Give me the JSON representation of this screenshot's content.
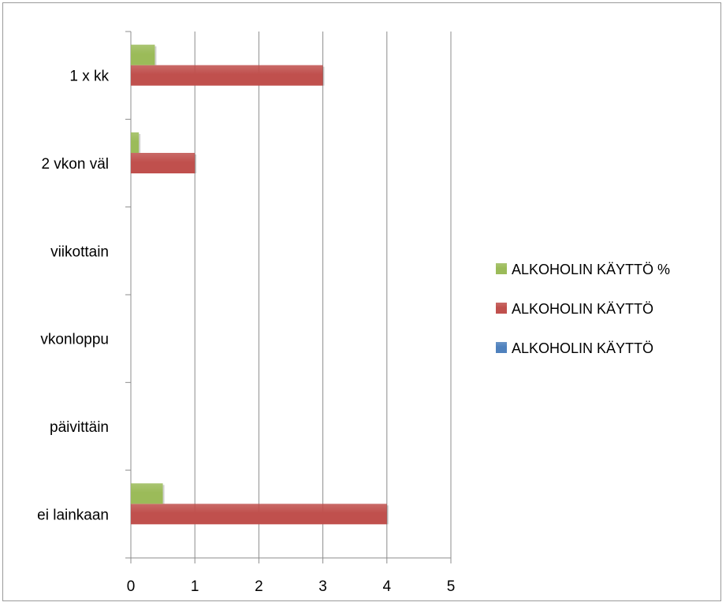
{
  "chart_data": {
    "type": "bar",
    "orientation": "horizontal",
    "categories": [
      "1 x kk",
      "2 vkon väl",
      "viikottain",
      "vkonloppu",
      "päivittäin",
      "ei lainkaan"
    ],
    "series": [
      {
        "name": "ALKOHOLIN KÄYTTÖ",
        "color": "#4f81bd",
        "values": [
          0,
          0,
          0,
          0,
          0,
          0
        ]
      },
      {
        "name": "ALKOHOLIN KÄYTTÖ",
        "color": "#c0504d",
        "values": [
          3,
          1,
          0,
          0,
          0,
          4
        ]
      },
      {
        "name": "ALKOHOLIN KÄYTTÖ %",
        "color": "#9bbb59",
        "values": [
          0.375,
          0.125,
          0,
          0,
          0,
          0.5
        ]
      }
    ],
    "x_ticks": [
      "0",
      "1",
      "2",
      "3",
      "4",
      "5"
    ],
    "xlim": [
      0,
      5
    ],
    "grid": true,
    "legend_position": "right",
    "title": "",
    "xlabel": "",
    "ylabel": ""
  }
}
